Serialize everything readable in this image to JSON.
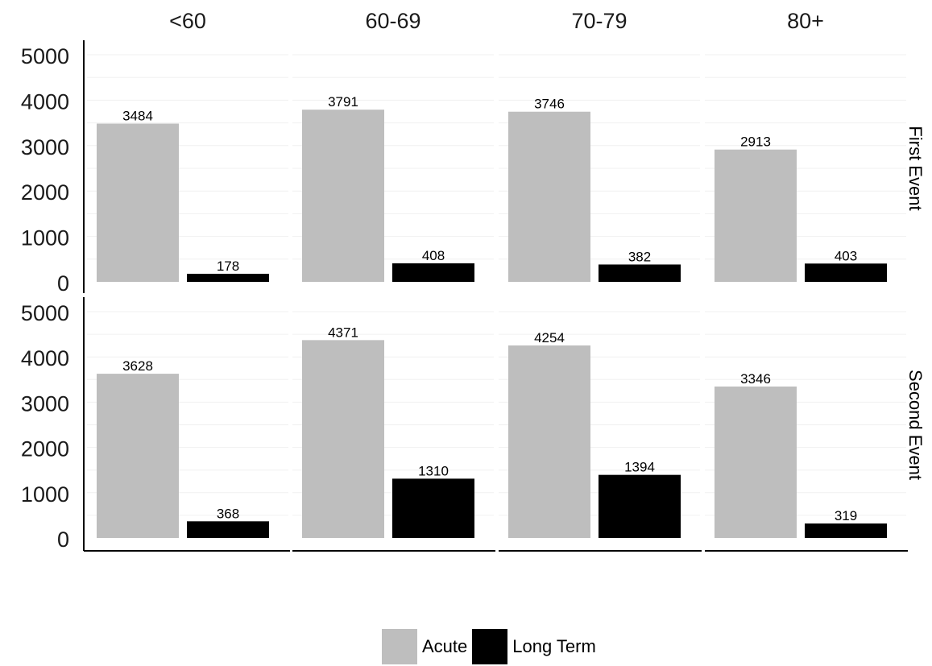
{
  "chart_data": {
    "type": "bar",
    "facet_columns": [
      "<60",
      "60-69",
      "70-79",
      "80+"
    ],
    "facet_rows": [
      "First Event",
      "Second Event"
    ],
    "categories": [
      "Acute",
      "Long Term"
    ],
    "series": [
      {
        "name": "Acute",
        "color": "#bebebe",
        "values": {
          "First Event": [
            3484,
            3791,
            3746,
            2913
          ],
          "Second Event": [
            3628,
            4371,
            4254,
            3346
          ]
        }
      },
      {
        "name": "Long Term",
        "color": "#000000",
        "values": {
          "First Event": [
            178,
            408,
            382,
            403
          ],
          "Second Event": [
            368,
            1310,
            1394,
            319
          ]
        }
      }
    ],
    "y_ticks": [
      0,
      1000,
      2000,
      3000,
      4000,
      5000
    ],
    "ylim": [
      0,
      5000
    ],
    "grid": true,
    "legend_position": "bottom"
  },
  "legend": {
    "acute": "Acute",
    "long_term": "Long Term"
  }
}
